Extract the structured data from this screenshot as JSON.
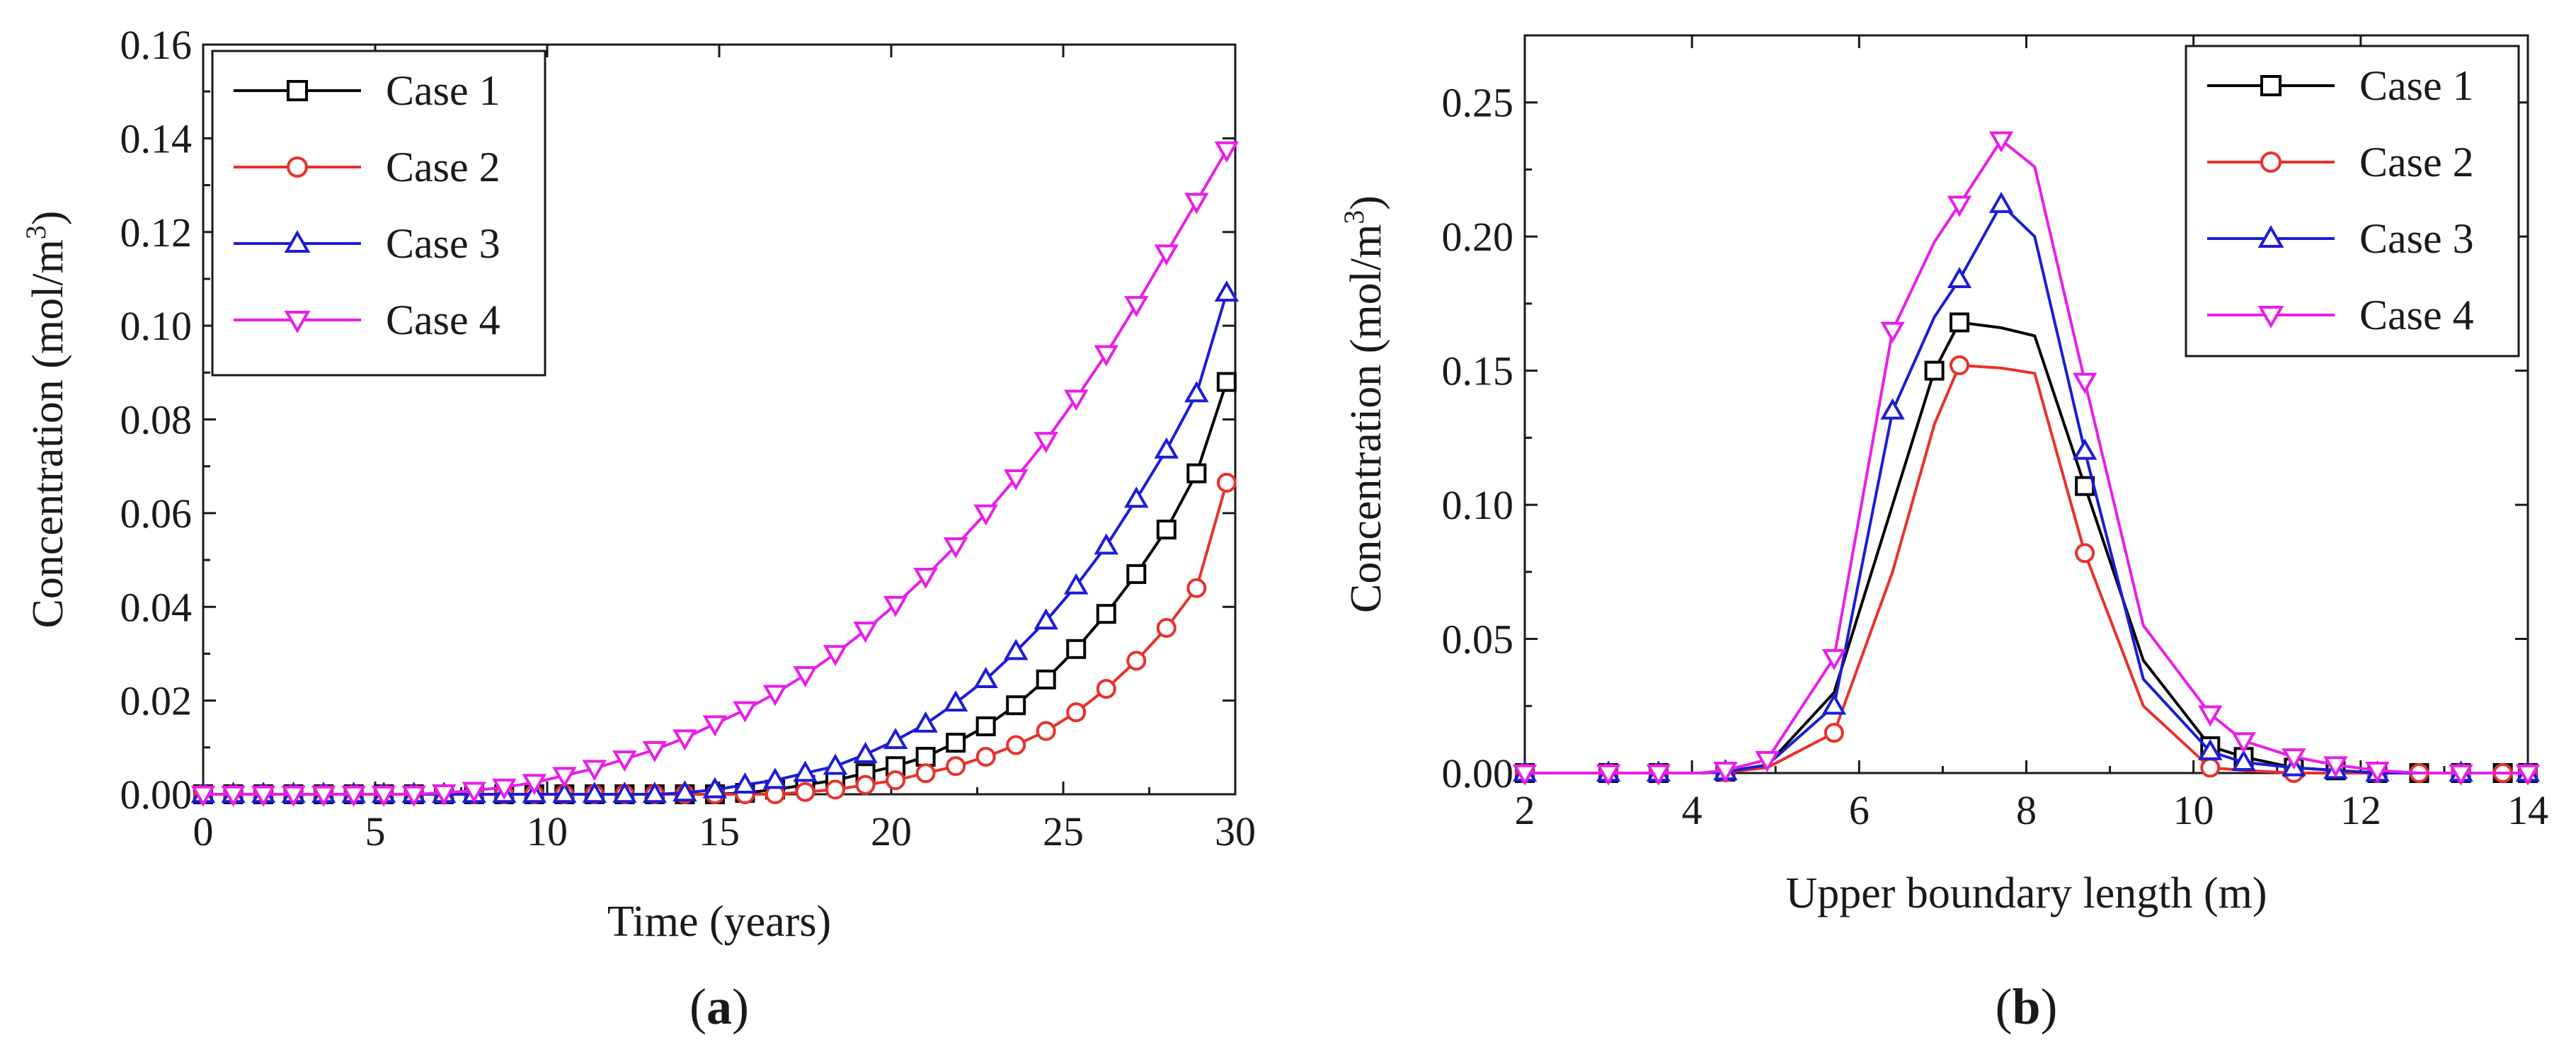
{
  "chart_data": [
    {
      "type": "line",
      "panel_label": "a",
      "xlabel": "Time (years)",
      "ylabel": "Concentration (mol/m",
      "ylabel_sup": "3",
      "ylabel_end": ")",
      "xlim": [
        0,
        30
      ],
      "ylim": [
        0,
        0.16
      ],
      "xticks": [
        "0",
        "5",
        "10",
        "15",
        "20",
        "25",
        "30"
      ],
      "yticks": [
        "0.00",
        "0.02",
        "0.04",
        "0.06",
        "0.08",
        "0.10",
        "0.12",
        "0.14",
        "0.16"
      ],
      "legend_position": "top-left",
      "series": [
        {
          "name": "Case 1",
          "color": "#000000",
          "marker": "square",
          "x": [
            0,
            0.875,
            1.75,
            2.625,
            3.5,
            4.375,
            5.25,
            6.125,
            7,
            7.875,
            8.75,
            9.625,
            10.5,
            11.375,
            12.25,
            13.125,
            14,
            14.875,
            15.75,
            16.625,
            17.5,
            18.375,
            19.25,
            20.125,
            21,
            21.875,
            22.75,
            23.625,
            24.5,
            25.375,
            26.25,
            27.125,
            28,
            28.875,
            29.75
          ],
          "values": [
            0,
            0,
            0,
            0,
            0,
            0,
            0,
            0,
            0,
            0,
            0,
            0,
            0,
            0,
            0,
            0,
            0,
            0,
            0.0003,
            0.001,
            0.002,
            0.003,
            0.0045,
            0.006,
            0.008,
            0.011,
            0.0145,
            0.019,
            0.0245,
            0.031,
            0.0385,
            0.047,
            0.0565,
            0.0685,
            0.088
          ]
        },
        {
          "name": "Case 2",
          "color": "#e8312b",
          "marker": "circle",
          "x": [
            0,
            0.875,
            1.75,
            2.625,
            3.5,
            4.375,
            5.25,
            6.125,
            7,
            7.875,
            8.75,
            9.625,
            10.5,
            11.375,
            12.25,
            13.125,
            14,
            14.875,
            15.75,
            16.625,
            17.5,
            18.375,
            19.25,
            20.125,
            21,
            21.875,
            22.75,
            23.625,
            24.5,
            25.375,
            26.25,
            27.125,
            28,
            28.875,
            29.75
          ],
          "values": [
            0,
            0,
            0,
            0,
            0,
            0,
            0,
            0,
            0,
            0,
            0,
            0,
            0,
            0,
            0,
            0,
            0,
            0,
            0,
            0,
            0.0005,
            0.001,
            0.002,
            0.003,
            0.0045,
            0.006,
            0.008,
            0.0105,
            0.0135,
            0.0175,
            0.0225,
            0.0285,
            0.0355,
            0.044,
            0.0665
          ]
        },
        {
          "name": "Case 3",
          "color": "#1c1cd6",
          "marker": "triangle-up",
          "x": [
            0,
            0.875,
            1.75,
            2.625,
            3.5,
            4.375,
            5.25,
            6.125,
            7,
            7.875,
            8.75,
            9.625,
            10.5,
            11.375,
            12.25,
            13.125,
            14,
            14.875,
            15.75,
            16.625,
            17.5,
            18.375,
            19.25,
            20.125,
            21,
            21.875,
            22.75,
            23.625,
            24.5,
            25.375,
            26.25,
            27.125,
            28,
            28.875,
            29.75
          ],
          "values": [
            0,
            0,
            0,
            0,
            0,
            0,
            0,
            0,
            0,
            0,
            0,
            0,
            0,
            0,
            0,
            0,
            0.0003,
            0.001,
            0.002,
            0.003,
            0.0045,
            0.006,
            0.0085,
            0.0115,
            0.015,
            0.0195,
            0.0245,
            0.0305,
            0.037,
            0.0445,
            0.053,
            0.063,
            0.0735,
            0.0855,
            0.107
          ]
        },
        {
          "name": "Case 4",
          "color": "#e81ee8",
          "marker": "triangle-down",
          "x": [
            0,
            0.875,
            1.75,
            2.625,
            3.5,
            4.375,
            5.25,
            6.125,
            7,
            7.875,
            8.75,
            9.625,
            10.5,
            11.375,
            12.25,
            13.125,
            14,
            14.875,
            15.75,
            16.625,
            17.5,
            18.375,
            19.25,
            20.125,
            21,
            21.875,
            22.75,
            23.625,
            24.5,
            25.375,
            26.25,
            27.125,
            28,
            28.875,
            29.75
          ],
          "values": [
            0,
            0,
            0,
            0,
            0,
            0,
            0,
            0,
            0.0003,
            0.0008,
            0.0015,
            0.0025,
            0.004,
            0.0055,
            0.0075,
            0.0095,
            0.012,
            0.015,
            0.018,
            0.0215,
            0.0255,
            0.03,
            0.035,
            0.0405,
            0.0465,
            0.053,
            0.06,
            0.0675,
            0.0755,
            0.0845,
            0.094,
            0.1045,
            0.1155,
            0.1265,
            0.1375
          ]
        }
      ]
    },
    {
      "type": "line",
      "panel_label": "b",
      "xlabel": "Upper boundary length (m)",
      "ylabel": "Concentration (mol/m",
      "ylabel_sup": "3",
      "ylabel_end": ")",
      "xlim": [
        2,
        14
      ],
      "ylim": [
        0,
        0.275
      ],
      "xticks": [
        "2",
        "4",
        "6",
        "8",
        "10",
        "12",
        "14"
      ],
      "yticks": [
        "0.00",
        "0.05",
        "0.10",
        "0.15",
        "0.20",
        "0.25"
      ],
      "legend_position": "top-right",
      "series": [
        {
          "name": "Case 1",
          "color": "#000000",
          "marker": "square",
          "x": [
            2,
            2.5,
            3,
            3.3,
            3.6,
            4.1,
            4.4,
            4.9,
            5.7,
            6.4,
            6.9,
            7.2,
            7.7,
            8.1,
            8.7,
            9.4,
            10.2,
            10.6,
            11.2,
            11.7,
            12.2,
            12.7,
            13.2,
            13.7,
            14
          ],
          "values": [
            0,
            0,
            0,
            0,
            0,
            0,
            0.0005,
            0.003,
            0.03,
            0.1,
            0.15,
            0.168,
            0.166,
            0.163,
            0.107,
            0.042,
            0.01,
            0.006,
            0.002,
            0.001,
            0,
            0,
            0,
            0,
            0
          ],
          "markers": [
            0,
            2,
            4,
            6,
            10,
            11,
            14,
            16,
            17,
            18,
            19,
            20,
            21,
            22,
            23,
            24
          ]
        },
        {
          "name": "Case 2",
          "color": "#e8312b",
          "marker": "circle",
          "x": [
            2,
            2.5,
            3,
            3.3,
            3.6,
            4.1,
            4.4,
            4.9,
            5.7,
            6.4,
            6.9,
            7.2,
            7.7,
            8.1,
            8.7,
            9.4,
            10.2,
            10.6,
            11.2,
            11.7,
            12.2,
            12.7,
            13.2,
            13.7,
            14
          ],
          "values": [
            0,
            0,
            0,
            0,
            0,
            0,
            0.0003,
            0.002,
            0.015,
            0.075,
            0.13,
            0.152,
            0.151,
            0.149,
            0.082,
            0.025,
            0.002,
            0.001,
            0,
            0,
            0,
            0,
            0,
            0,
            0
          ],
          "markers": [
            0,
            2,
            4,
            6,
            8,
            11,
            14,
            16,
            18,
            20,
            21,
            22,
            23,
            24
          ]
        },
        {
          "name": "Case 3",
          "color": "#1c1cd6",
          "marker": "triangle-up",
          "x": [
            2,
            2.5,
            3,
            3.3,
            3.6,
            4.1,
            4.4,
            4.9,
            5.7,
            6.4,
            6.9,
            7.2,
            7.7,
            8.1,
            8.7,
            9.4,
            10.2,
            10.6,
            11.2,
            11.7,
            12.2,
            12.7,
            13.2,
            13.7,
            14
          ],
          "values": [
            0,
            0,
            0,
            0,
            0,
            0,
            0.0005,
            0.003,
            0.025,
            0.135,
            0.17,
            0.184,
            0.212,
            0.2,
            0.12,
            0.035,
            0.008,
            0.004,
            0.002,
            0.001,
            0,
            0,
            0,
            0,
            0
          ],
          "markers": [
            0,
            2,
            4,
            6,
            8,
            9,
            11,
            12,
            14,
            16,
            17,
            18,
            19,
            20,
            22,
            24
          ]
        },
        {
          "name": "Case 4",
          "color": "#e81ee8",
          "marker": "triangle-down",
          "x": [
            2,
            2.5,
            3,
            3.3,
            3.6,
            4.1,
            4.4,
            4.9,
            5.7,
            6.4,
            6.9,
            7.2,
            7.7,
            8.1,
            8.7,
            9.4,
            10.2,
            10.6,
            11.2,
            11.7,
            12.2,
            12.7,
            13.2,
            13.7,
            14
          ],
          "values": [
            0,
            0,
            0,
            0,
            0,
            0,
            0.001,
            0.005,
            0.043,
            0.165,
            0.198,
            0.212,
            0.236,
            0.226,
            0.146,
            0.055,
            0.022,
            0.012,
            0.006,
            0.003,
            0.001,
            0,
            0,
            0,
            0
          ],
          "markers": [
            0,
            2,
            4,
            6,
            7,
            8,
            9,
            11,
            12,
            14,
            16,
            17,
            18,
            19,
            20,
            22,
            24
          ]
        }
      ]
    }
  ]
}
